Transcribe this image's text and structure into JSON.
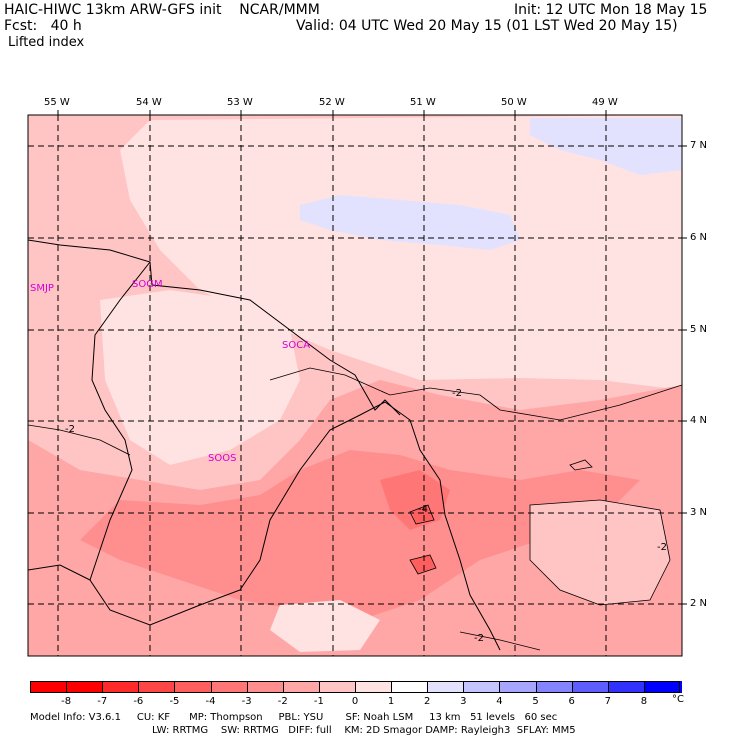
{
  "header": {
    "left_line1": "HAIC-HIWC 13km ARW-GFS init    NCAR/MMM",
    "left_line2": "Fcst:   40 h",
    "field": "Lifted index",
    "init": "Init: 12 UTC Mon 18 May 15",
    "valid": "Valid: 04 UTC Wed 20 May 15 (01 LST Wed 20 May 15)"
  },
  "axes": {
    "lon_labels": [
      "55 W",
      "54 W",
      "53 W",
      "52 W",
      "51 W",
      "50 W",
      "49 W"
    ],
    "lat_labels": [
      "7 N",
      "6 N",
      "5 N",
      "4 N",
      "3 N",
      "2 N"
    ]
  },
  "stations": [
    "SMJP",
    "SOGM",
    "SOCA",
    "SOOS"
  ],
  "contour_labels": [
    "-2",
    "-2",
    "-4",
    "-2",
    "-2"
  ],
  "colorbar": {
    "labels": [
      "-8",
      "-7",
      "-6",
      "-5",
      "-4",
      "-3",
      "-2",
      "-1",
      "0",
      "1",
      "2",
      "3",
      "4",
      "5",
      "6",
      "7",
      "8"
    ],
    "unit": "°C",
    "colors": [
      "#ff0000",
      "#ff2a2a",
      "#ff4646",
      "#ff5e5e",
      "#ff7676",
      "#ff8e8e",
      "#ffa6a6",
      "#ffc4c4",
      "#ffe2e2",
      "#ffffff",
      "#e2e2ff",
      "#c4c4ff",
      "#a6a6ff",
      "#8484ff",
      "#5e5eff",
      "#3232ff",
      "#0000ff"
    ]
  },
  "footer": {
    "line1": "Model Info: V3.6.1     CU: KF      MP: Thompson     PBL: YSU       SF: Noah LSM     13 km   51 levels   60 sec",
    "line2": "LW: RRTMG    SW: RRTMG   DIFF: full    KM: 2D Smagor DAMP: Rayleigh3  SFLAY: MM5"
  }
}
